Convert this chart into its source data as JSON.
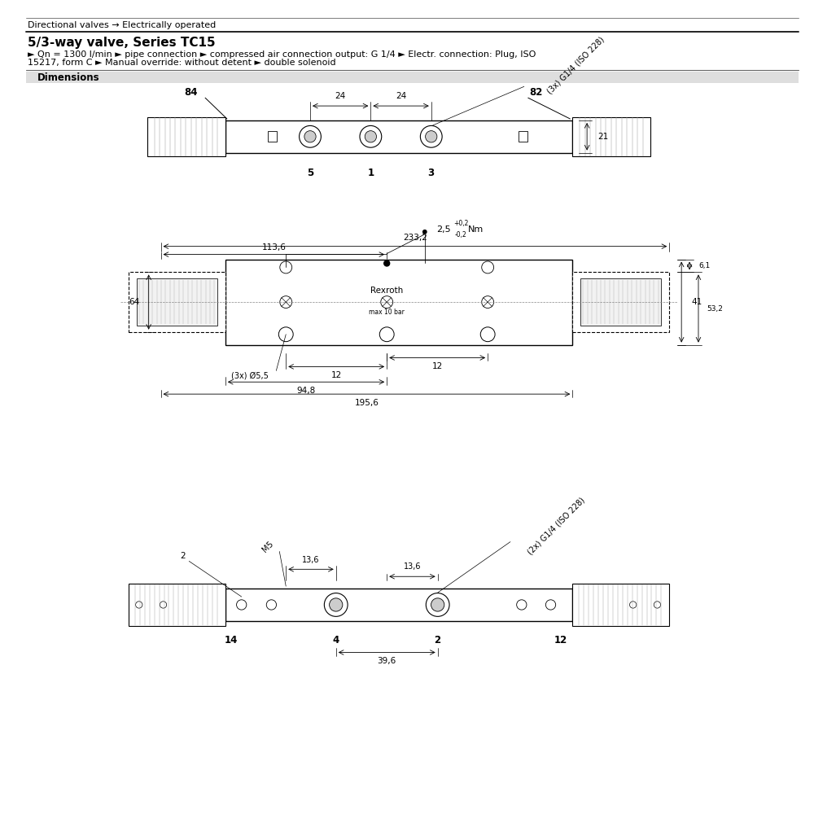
{
  "bg_color": "#ffffff",
  "header_line1": "Directional valves → Electrically operated",
  "title": "5/3-way valve, Series TC15",
  "subtitle_line1": "► Qn = 1300 l/min ► pipe connection ► compressed air connection output: G 1/4 ► Electr. connection: Plug, ISO",
  "subtitle_line2": "15217, form C ► Manual override: without detent ► double solenoid",
  "section_label": "Dimensions",
  "dim_233": "233,2",
  "dim_113": "113,6",
  "dim_64": "64",
  "dim_41": "41",
  "dim_61": "6,1",
  "dim_532": "53,2",
  "dim_d55": "(3x) Ø5,5",
  "dim_12h": "12",
  "dim_12v": "12",
  "dim_948": "94,8",
  "dim_1956": "195,6",
  "dim_136l": "13,6",
  "dim_136r": "13,6",
  "dim_396": "39,6",
  "lbl_rexroth": "Rexroth",
  "lbl_maxbar": "max 10 bar",
  "lbl_torque": "2,5",
  "lbl_torque_plus": "+0,2",
  "lbl_torque_minus": "-0,2",
  "lbl_torque_unit": "Nm",
  "lbl_g14_top": "(3x) G1/4 (ISO 228)",
  "lbl_g14_bot": "(2x) G1/4 (ISO 228)",
  "lbl_84": "84",
  "lbl_82": "82",
  "lbl_21": "21",
  "lbl_24a": "24",
  "lbl_24b": "24",
  "lbl_5": "5",
  "lbl_1": "1",
  "lbl_3": "3",
  "lbl_port4": "4",
  "lbl_port2": "2",
  "lbl_port14": "14",
  "lbl_port12": "12",
  "lbl_2": "2",
  "lbl_M5": "M5"
}
